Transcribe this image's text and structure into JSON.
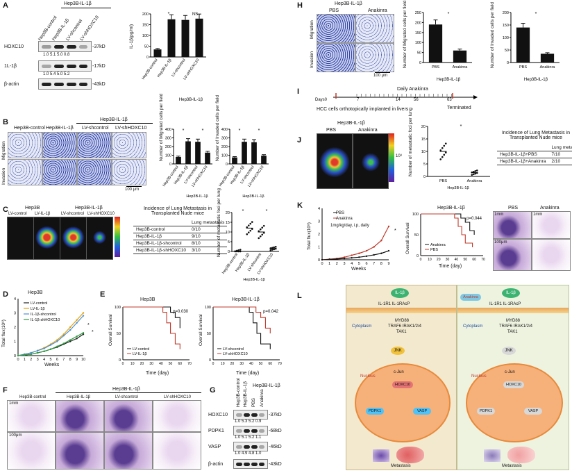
{
  "panels": {
    "A": {
      "letter": "A",
      "group_header": "Hep3B-IL-1β",
      "lanes": [
        "Hep3B-control",
        "Hep3B-IL-1β",
        "LV-shcontrol",
        "LV-shHOXC10"
      ],
      "blots": [
        {
          "name": "HOXC10",
          "size": "-37kD",
          "quant": "1.0   5.1   5.0   0.8"
        },
        {
          "name": "1L-1β",
          "size": "-17kD",
          "quant": "1.0   5.4   5.0   5.2"
        },
        {
          "name": "β-actin",
          "size": "-43kD",
          "quant": ""
        }
      ],
      "chart": {
        "ylabel": "IL-1β(pg/ml)",
        "yticks": [
          "0",
          "50",
          "100",
          "150",
          "200"
        ],
        "sig": [
          "*",
          "NS"
        ],
        "group_label": "Hep3B-IL-1β"
      }
    },
    "B": {
      "letter": "B",
      "header": "Hep3B-IL-1β",
      "cols": [
        "Hep3B-control",
        "Hep3B-IL-1β",
        "LV-shcontrol",
        "LV-shHOXC10"
      ],
      "rows": [
        "Migration",
        "Invasion"
      ],
      "scale": "100 μm",
      "chart1": {
        "ylabel": "Number of Migrated cells per field",
        "yticks": [
          "0",
          "100",
          "200",
          "300",
          "400"
        ],
        "sig": [
          "*",
          "*"
        ],
        "group_label": "Hep3B-IL-1β"
      },
      "chart2": {
        "ylabel": "Number of Invaded cells per field",
        "yticks": [
          "0",
          "100",
          "200",
          "300",
          "400"
        ],
        "sig": [
          "*",
          "*"
        ],
        "group_label": "Hep3B-IL-1β"
      },
      "categories": [
        "Hep3B-control",
        "Hep3B-IL-1β",
        "LV-shcontrol",
        "LV-shHOXC10"
      ]
    },
    "C": {
      "letter": "C",
      "headers": [
        "Hep3B",
        "Hep3B-IL-1β"
      ],
      "mice": [
        "LV-control",
        "LV-IL-1β",
        "LV-shcontrol",
        "LV-shHOXC10"
      ],
      "table_title": "Incidence of Lung Metastasis in Transplanted Nude mice",
      "table_header": "Lung metastasis",
      "table_rows": [
        [
          "Hep3B-control",
          "0/10"
        ],
        [
          "Hep3B-IL-1β",
          "9/10"
        ],
        [
          "Hep3B-IL-1β-shcontrol",
          "8/10"
        ],
        [
          "Hep3B-IL-1β-shHOXC10",
          "3/10"
        ]
      ],
      "chart": {
        "ylabel": "Number of metastatic foci per lung",
        "yticks": [
          "0",
          "5",
          "10",
          "15",
          "20"
        ],
        "sig": [
          "*",
          "*"
        ],
        "group_label": "Hep3B-IL-1β"
      }
    },
    "D": {
      "letter": "D",
      "title": "Hep3B",
      "ylabel": "Total flux(10⁸)",
      "xlabel": "Weeks",
      "legend": [
        "LV-control",
        "LV-IL-1β",
        "IL-1β-shcontrol",
        "IL-1β-shHOXC10"
      ],
      "sig": [
        "*",
        "*"
      ]
    },
    "E": {
      "letter": "E",
      "left": {
        "title": "Hep3B",
        "pval": "p=0.030",
        "legend": [
          "LV-control",
          "LV-IL-1β"
        ]
      },
      "right": {
        "title": "Hep3B-IL-1β",
        "pval": "p=0.042",
        "legend": [
          "LV-shcontrol",
          "LV-shHOXC10"
        ]
      },
      "ylabel": "Overall Survival",
      "xlabel": "Time (day)"
    },
    "F": {
      "letter": "F",
      "cols": [
        "Hep3B-control",
        "Hep3B-IL-1β",
        "LV-shcontrol",
        "LV-shHOXC10"
      ],
      "header": "Hep3B-IL-1β",
      "scale1": "1mm",
      "scale2": "100μm"
    },
    "G": {
      "letter": "G",
      "header": "Hep3B-IL-1β",
      "lanes": [
        "Hep3B-control",
        "Hep3B-IL-1β",
        "PBS",
        "Anakinra"
      ],
      "blots": [
        {
          "name": "HOXC10",
          "size": "-37kD",
          "quant": "1.0  5.3  5.2  0.9"
        },
        {
          "name": "PDPK1",
          "size": "-68kD",
          "quant": "1.0  5.1  5.2  1.1"
        },
        {
          "name": "VASP",
          "size": "-46kD",
          "quant": "1.0  4.9  4.8  1.0"
        },
        {
          "name": "β-actin",
          "size": "-43kD",
          "quant": ""
        }
      ]
    },
    "H": {
      "letter": "H",
      "header": "Hep3B-IL-1β",
      "cols": [
        "PBS",
        "Anakinra"
      ],
      "rows": [
        "Migration",
        "Invasion"
      ],
      "scale": "100 μm",
      "chart1": {
        "ylabel": "Number of Migrated cells per field",
        "yticks": [
          "0",
          "50",
          "100",
          "150",
          "200",
          "250"
        ],
        "categories": [
          "PBS",
          "Anakinra"
        ],
        "sig": "*",
        "group_label": "Hep3B-IL-1β"
      },
      "chart2": {
        "ylabel": "Number of Invaded cells per field",
        "yticks": [
          "0",
          "50",
          "100",
          "150",
          "200"
        ],
        "categories": [
          "PBS",
          "Anakinra"
        ],
        "sig": "*",
        "group_label": "Hep3B-IL-1β"
      }
    },
    "I": {
      "letter": "I",
      "top_label": "Daily Anakinra",
      "days_label": "Days0",
      "ticks": [
        "7",
        "14",
        "56",
        "63"
      ],
      "bottom_label": "HCC cells orthotopically implanted in livers",
      "end_label": "Terminated"
    },
    "J": {
      "letter": "J",
      "header": "Hep3B-IL-1β",
      "mice": [
        "PBS",
        "Anakinra"
      ],
      "colorbar_unit": "10⁸",
      "chart": {
        "ylabel": "Number of metastatic foci per lung",
        "yticks": [
          "0",
          "5",
          "10",
          "15",
          "20"
        ],
        "categories": [
          "PBS",
          "Anakinra"
        ],
        "sig": "*",
        "group_label": "Hep3B-IL-1β"
      },
      "table_title": "Incidence of Lung Metastasis in Transplanted Nude mice",
      "table_header": "Lung metastasis",
      "table_rows": [
        [
          "Hep3B-IL-1β+PBS",
          "7/10"
        ],
        [
          "Hep3B-IL-1β+Anakinra",
          "2/10"
        ]
      ]
    },
    "K": {
      "letter": "K",
      "legend": [
        "PBS",
        "Anakinra"
      ],
      "dose": "1mg/kg/day, i.p, daily",
      "ylabel": "Total flux(10⁸)",
      "xlabel": "Weeks",
      "sig": "*",
      "surv_title": "Hep3B-IL-1β",
      "surv_pval": "p=0.044",
      "surv_legend": [
        "Anakinra",
        "PBS"
      ],
      "surv_ylabel": "Overall Survival",
      "surv_xlabel": "Time (day)",
      "he_cols": [
        "PBS",
        "Anakinra"
      ],
      "he_scale1": "1mm",
      "he_scale2": "100μm"
    },
    "L": {
      "letter": "L",
      "left": {
        "receptor": "IL-1R1  IL-1RAcP",
        "ligand": "IL-1β",
        "cytoplasm": "Cytoplasm",
        "adaptor": "MYD88",
        "kinases": "TRAF6  IRAK1/2/4",
        "tak": "TAK1",
        "jnk": "JNK",
        "cjun": "c-Jun",
        "nucleus": "Nucleus",
        "hoxc10": "HOXC10",
        "pdpk1": "PDPK1",
        "vasp": "VASP",
        "metastasis": "Metastasis"
      },
      "right": {
        "drug": "Anakinra",
        "receptor": "IL-1R1  IL-1RAcP",
        "ligand": "IL-1β",
        "cytoplasm": "Cytoplasm",
        "adaptor": "MYD88",
        "kinases": "TRAF6  IRAK1/2/4",
        "tak": "TAK1",
        "jnk": "JNK",
        "cjun": "c-Jun",
        "nucleus": "Nucleus",
        "hoxc10": "HOXC10",
        "pdpk1": "PDPK1",
        "vasp": "VASP",
        "metastasis": "Metastasis"
      }
    }
  },
  "chart_data": [
    {
      "id": "A-elisa",
      "type": "bar",
      "categories": [
        "Hep3B-control",
        "Hep3B-IL-1β",
        "LV-shcontrol",
        "LV-shHOXC10"
      ],
      "values": [
        35,
        175,
        172,
        178
      ],
      "ylabel": "IL-1β(pg/ml)",
      "ylim": [
        0,
        200
      ]
    },
    {
      "id": "B-migration",
      "type": "bar",
      "categories": [
        "Hep3B-control",
        "Hep3B-IL-1β",
        "LV-shcontrol",
        "LV-shHOXC10"
      ],
      "values": [
        80,
        260,
        255,
        130
      ],
      "ylabel": "Number of Migrated cells per field",
      "ylim": [
        0,
        400
      ]
    },
    {
      "id": "B-invasion",
      "type": "bar",
      "categories": [
        "Hep3B-control",
        "Hep3B-IL-1β",
        "LV-shcontrol",
        "LV-shHOXC10"
      ],
      "values": [
        75,
        255,
        250,
        95
      ],
      "ylabel": "Number of Invaded cells per field",
      "ylim": [
        0,
        400
      ]
    },
    {
      "id": "H-migration",
      "type": "bar",
      "categories": [
        "PBS",
        "Anakinra"
      ],
      "values": [
        190,
        60
      ],
      "ylabel": "Number of Migrated cells per field",
      "ylim": [
        0,
        250
      ]
    },
    {
      "id": "H-invasion",
      "type": "bar",
      "categories": [
        "PBS",
        "Anakinra"
      ],
      "values": [
        140,
        35
      ],
      "ylabel": "Number of Invaded cells per field",
      "ylim": [
        0,
        200
      ]
    },
    {
      "id": "D-growth",
      "type": "line",
      "x": [
        0,
        1,
        2,
        3,
        4,
        5,
        6,
        7,
        8,
        9,
        10
      ],
      "series": [
        {
          "name": "LV-control",
          "values": [
            0,
            0.05,
            0.1,
            0.2,
            0.3,
            0.45,
            0.6,
            0.8,
            1.0,
            1.2,
            1.5
          ]
        },
        {
          "name": "LV-IL-1β",
          "values": [
            0,
            0.1,
            0.2,
            0.35,
            0.55,
            0.8,
            1.1,
            1.5,
            2.0,
            2.5,
            3.0
          ]
        },
        {
          "name": "IL-1β-shcontrol",
          "values": [
            0,
            0.1,
            0.2,
            0.35,
            0.5,
            0.75,
            1.0,
            1.4,
            1.8,
            2.3,
            2.8
          ]
        },
        {
          "name": "IL-1β-shHOXC10",
          "values": [
            0,
            0.05,
            0.1,
            0.2,
            0.3,
            0.45,
            0.65,
            0.85,
            1.1,
            1.35,
            1.6
          ]
        }
      ],
      "xlabel": "Weeks",
      "ylabel": "Total flux(10⁸)",
      "ylim": [
        0,
        4
      ]
    },
    {
      "id": "K-growth",
      "type": "line",
      "x": [
        0,
        1,
        2,
        3,
        4,
        5,
        6,
        7,
        8,
        9
      ],
      "series": [
        {
          "name": "PBS",
          "values": [
            0,
            0.05,
            0.1,
            0.2,
            0.35,
            0.5,
            0.7,
            1.0,
            1.5,
            2.6
          ]
        },
        {
          "name": "Anakinra",
          "values": [
            0,
            0.03,
            0.06,
            0.1,
            0.15,
            0.2,
            0.28,
            0.38,
            0.5,
            0.7
          ]
        }
      ],
      "xlabel": "Weeks",
      "ylabel": "Total flux(10⁸)",
      "ylim": [
        0,
        4
      ]
    },
    {
      "id": "C-foci",
      "type": "scatter",
      "categories": [
        "Hep3B-control",
        "Hep3B-IL-1β",
        "LV-shcontrol",
        "LV-shHOXC10"
      ],
      "means": [
        0,
        12,
        10,
        1.5
      ],
      "ylabel": "Number of metastatic foci per lung",
      "ylim": [
        0,
        20
      ]
    },
    {
      "id": "J-foci",
      "type": "scatter",
      "categories": [
        "PBS",
        "Anakinra"
      ],
      "means": [
        10,
        1.5
      ],
      "ylabel": "Number of metastatic foci per lung",
      "ylim": [
        0,
        20
      ]
    }
  ]
}
